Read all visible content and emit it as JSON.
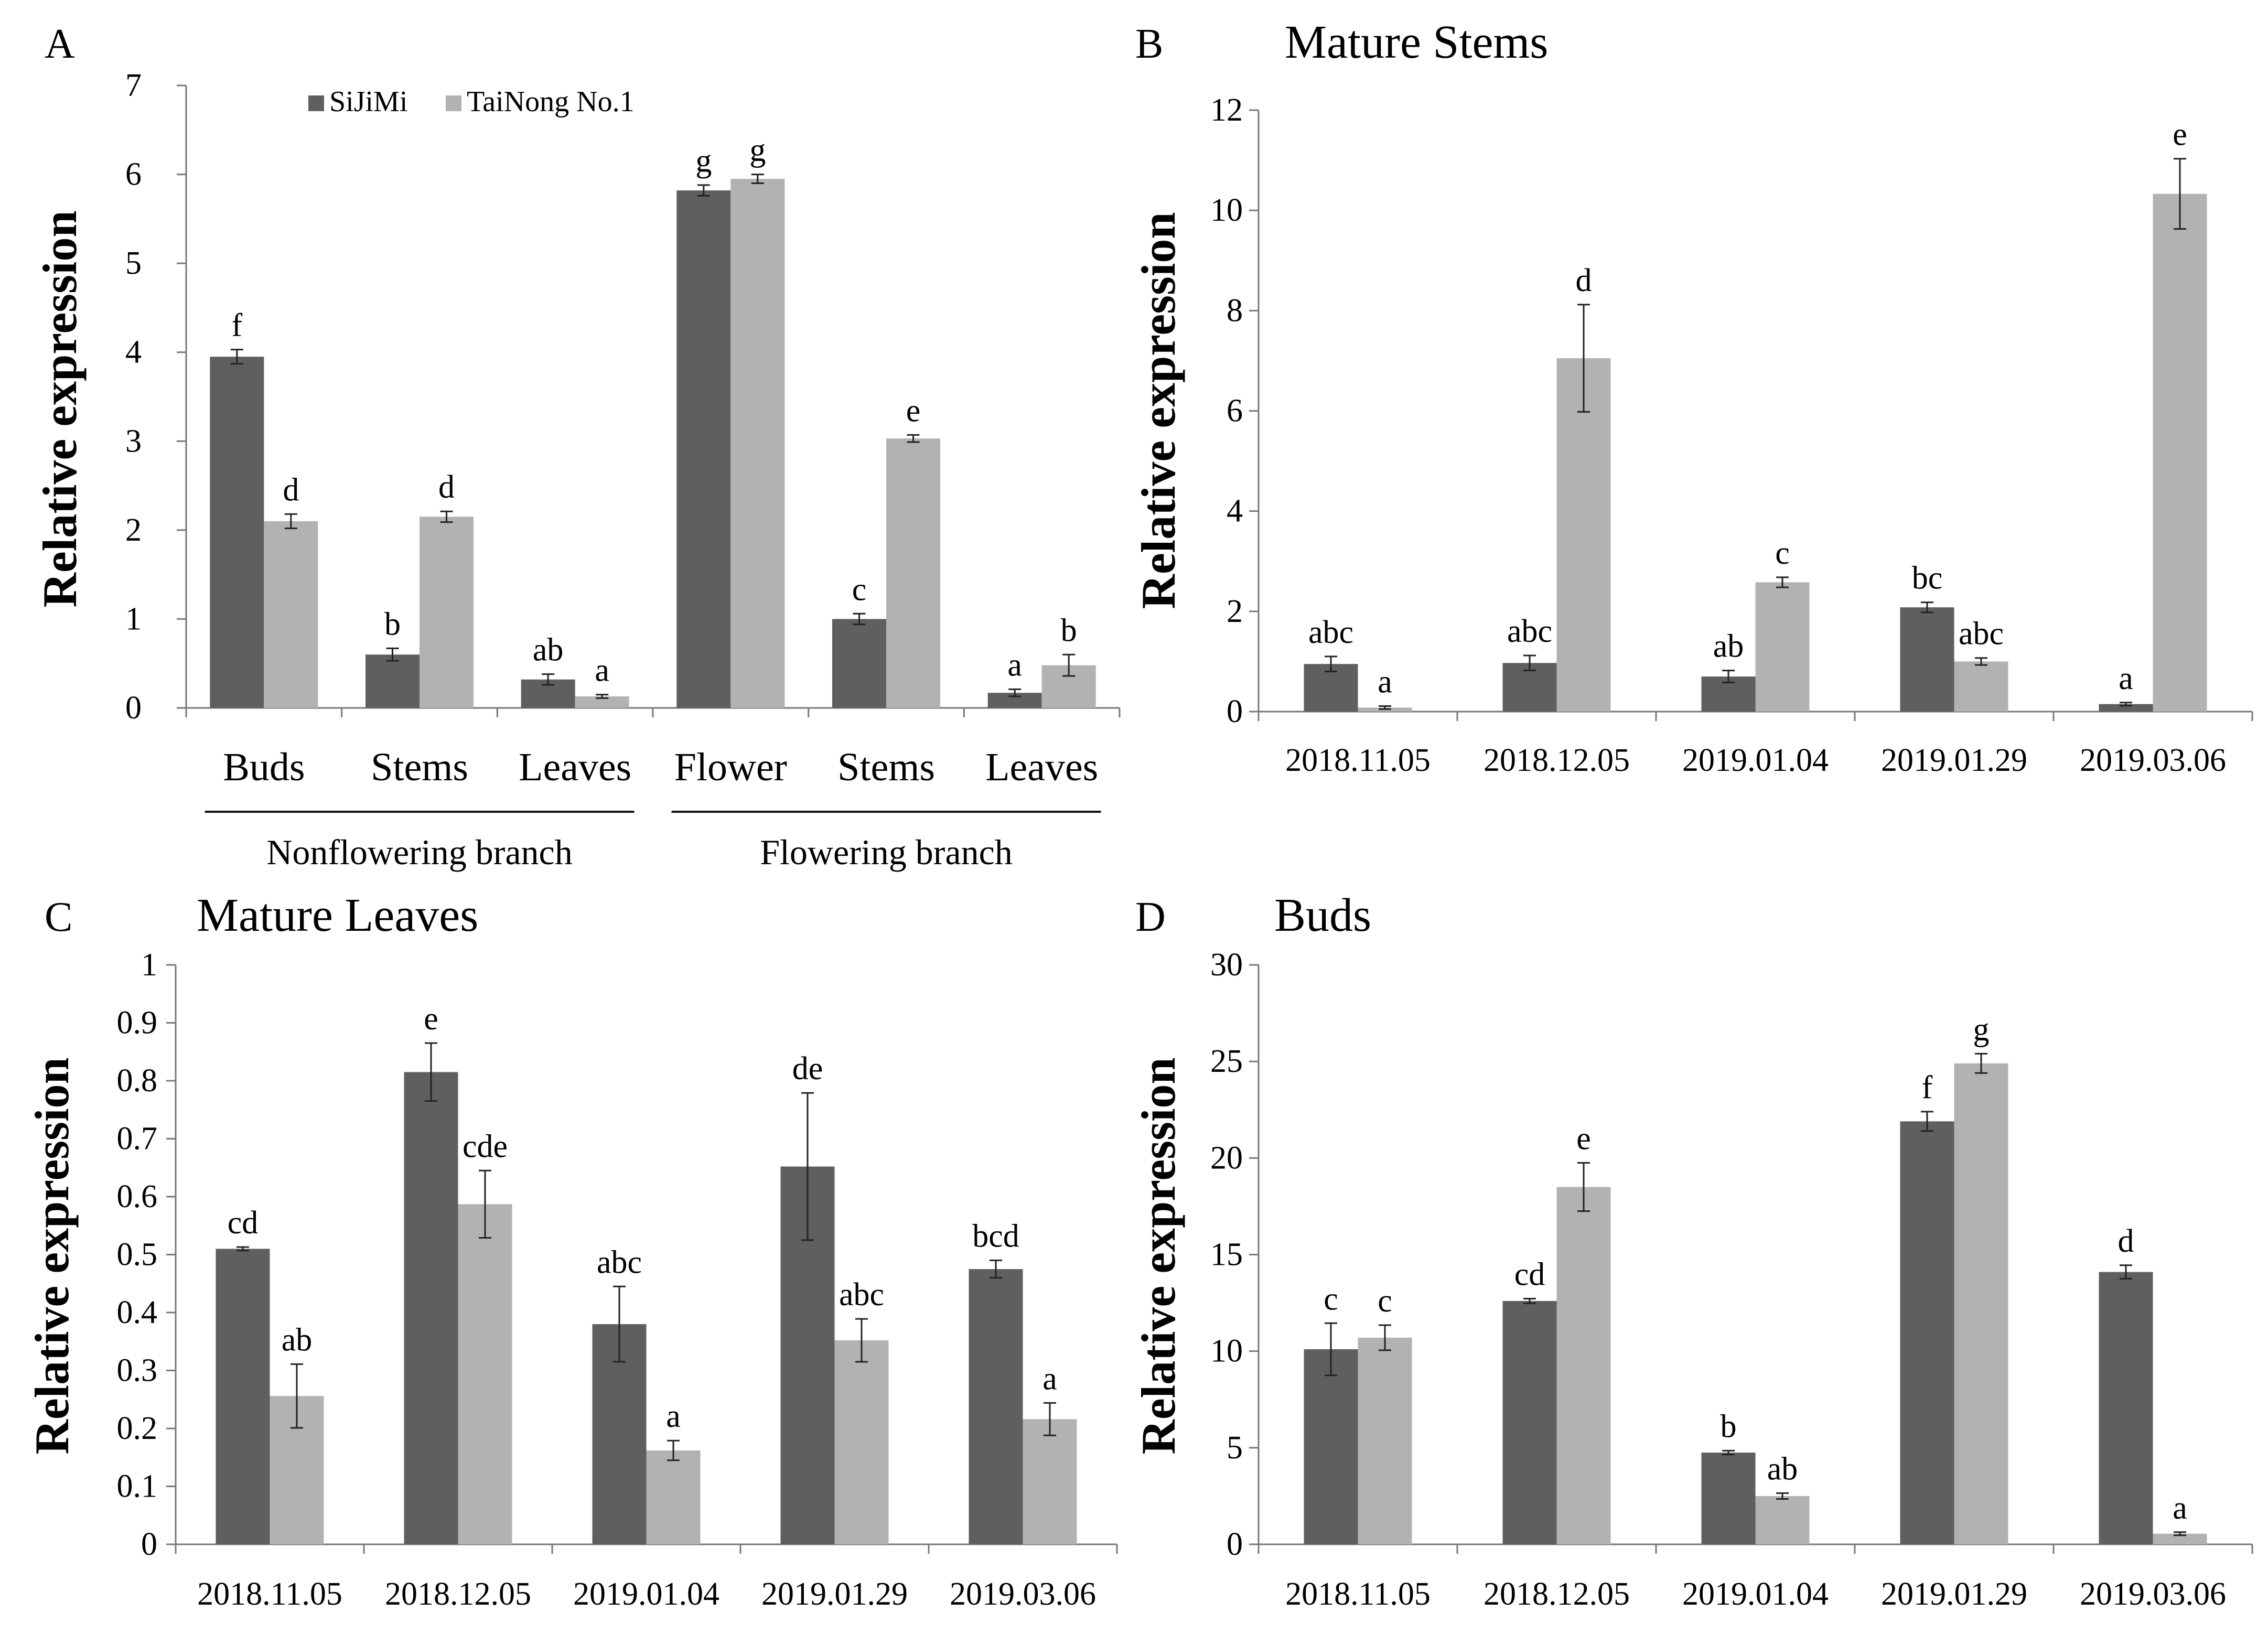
{
  "legend": {
    "series": [
      {
        "name": "SiJiMi",
        "color": "#5f5f5f"
      },
      {
        "name": "TaiNong No.1",
        "color": "#b2b2b2"
      }
    ]
  },
  "chart_data": [
    {
      "panel": "A",
      "title": "",
      "type": "bar",
      "ylabel": "Relative expression",
      "ylim": [
        0,
        7
      ],
      "yticks": [
        "0",
        "1",
        "2",
        "3",
        "4",
        "5",
        "6",
        "7"
      ],
      "categories": [
        "Buds",
        "Stems",
        "Leaves",
        "Flower",
        "Stems",
        "Leaves"
      ],
      "groups": [
        {
          "label": "Nonflowering branch",
          "categories": [
            0,
            1,
            2
          ]
        },
        {
          "label": "Flowering branch",
          "categories": [
            3,
            4,
            5
          ]
        }
      ],
      "legend_placement": "top-center",
      "series": [
        {
          "name": "SiJiMi",
          "values": [
            3.95,
            0.6,
            0.32,
            5.82,
            1.0,
            0.17
          ],
          "errors": [
            0.08,
            0.07,
            0.06,
            0.06,
            0.06,
            0.04
          ],
          "labels": [
            "f",
            "b",
            "ab",
            "g",
            "c",
            "a"
          ]
        },
        {
          "name": "TaiNong No.1",
          "values": [
            2.1,
            2.15,
            0.13,
            5.95,
            3.03,
            0.48
          ],
          "errors": [
            0.08,
            0.06,
            0.02,
            0.05,
            0.04,
            0.12
          ],
          "labels": [
            "d",
            "d",
            "a",
            "g",
            "e",
            "b"
          ]
        }
      ]
    },
    {
      "panel": "B",
      "title": "Mature Stems",
      "type": "bar",
      "ylabel": "Relative expression",
      "ylim": [
        0,
        12
      ],
      "yticks": [
        "0",
        "2",
        "4",
        "6",
        "8",
        "10",
        "12"
      ],
      "categories": [
        "2018.11.05",
        "2018.12.05",
        "2019.01.04",
        "2019.01.29",
        "2019.03.06"
      ],
      "series": [
        {
          "name": "SiJiMi",
          "values": [
            0.95,
            0.97,
            0.7,
            2.08,
            0.15
          ],
          "errors": [
            0.15,
            0.15,
            0.12,
            0.1,
            0.03
          ],
          "labels": [
            "abc",
            "abc",
            "ab",
            "bc",
            "a"
          ]
        },
        {
          "name": "TaiNong No.1",
          "values": [
            0.08,
            7.05,
            2.58,
            1.0,
            10.33
          ],
          "errors": [
            0.03,
            1.07,
            0.1,
            0.07,
            0.7
          ],
          "labels": [
            "a",
            "d",
            "c",
            "abc",
            "e"
          ]
        }
      ]
    },
    {
      "panel": "C",
      "title": "Mature Leaves",
      "type": "bar",
      "ylabel": "Relative expression",
      "ylim": [
        0,
        1
      ],
      "yticks": [
        "0",
        "0.1",
        "0.2",
        "0.3",
        "0.4",
        "0.5",
        "0.6",
        "0.7",
        "0.8",
        "0.9",
        "1"
      ],
      "categories": [
        "2018.11.05",
        "2018.12.05",
        "2019.01.04",
        "2019.01.29",
        "2019.03.06"
      ],
      "series": [
        {
          "name": "SiJiMi",
          "values": [
            0.51,
            0.815,
            0.38,
            0.652,
            0.475
          ],
          "errors": [
            0.003,
            0.05,
            0.065,
            0.127,
            0.015
          ],
          "labels": [
            "cd",
            "e",
            "abc",
            "de",
            "bcd"
          ]
        },
        {
          "name": "TaiNong No.1",
          "values": [
            0.256,
            0.587,
            0.162,
            0.352,
            0.216
          ],
          "errors": [
            0.055,
            0.058,
            0.017,
            0.037,
            0.028
          ],
          "labels": [
            "ab",
            "cde",
            "a",
            "abc",
            "a"
          ]
        }
      ]
    },
    {
      "panel": "D",
      "title": "Buds",
      "type": "bar",
      "ylabel": "Relative expression",
      "ylim": [
        0,
        30
      ],
      "yticks": [
        "0",
        "5",
        "10",
        "15",
        "20",
        "25",
        "30"
      ],
      "categories": [
        "2018.11.05",
        "2018.12.05",
        "2019.01.04",
        "2019.01.29",
        "2019.03.06"
      ],
      "series": [
        {
          "name": "SiJiMi",
          "values": [
            10.1,
            12.6,
            4.75,
            21.9,
            14.1
          ],
          "errors": [
            1.35,
            0.12,
            0.1,
            0.5,
            0.35
          ],
          "labels": [
            "c",
            "cd",
            "b",
            "f",
            "d"
          ]
        },
        {
          "name": "TaiNong No.1",
          "values": [
            10.7,
            18.5,
            2.5,
            24.9,
            0.55
          ],
          "errors": [
            0.65,
            1.25,
            0.15,
            0.5,
            0.08
          ],
          "labels": [
            "c",
            "e",
            "ab",
            "g",
            "a"
          ]
        }
      ]
    }
  ]
}
